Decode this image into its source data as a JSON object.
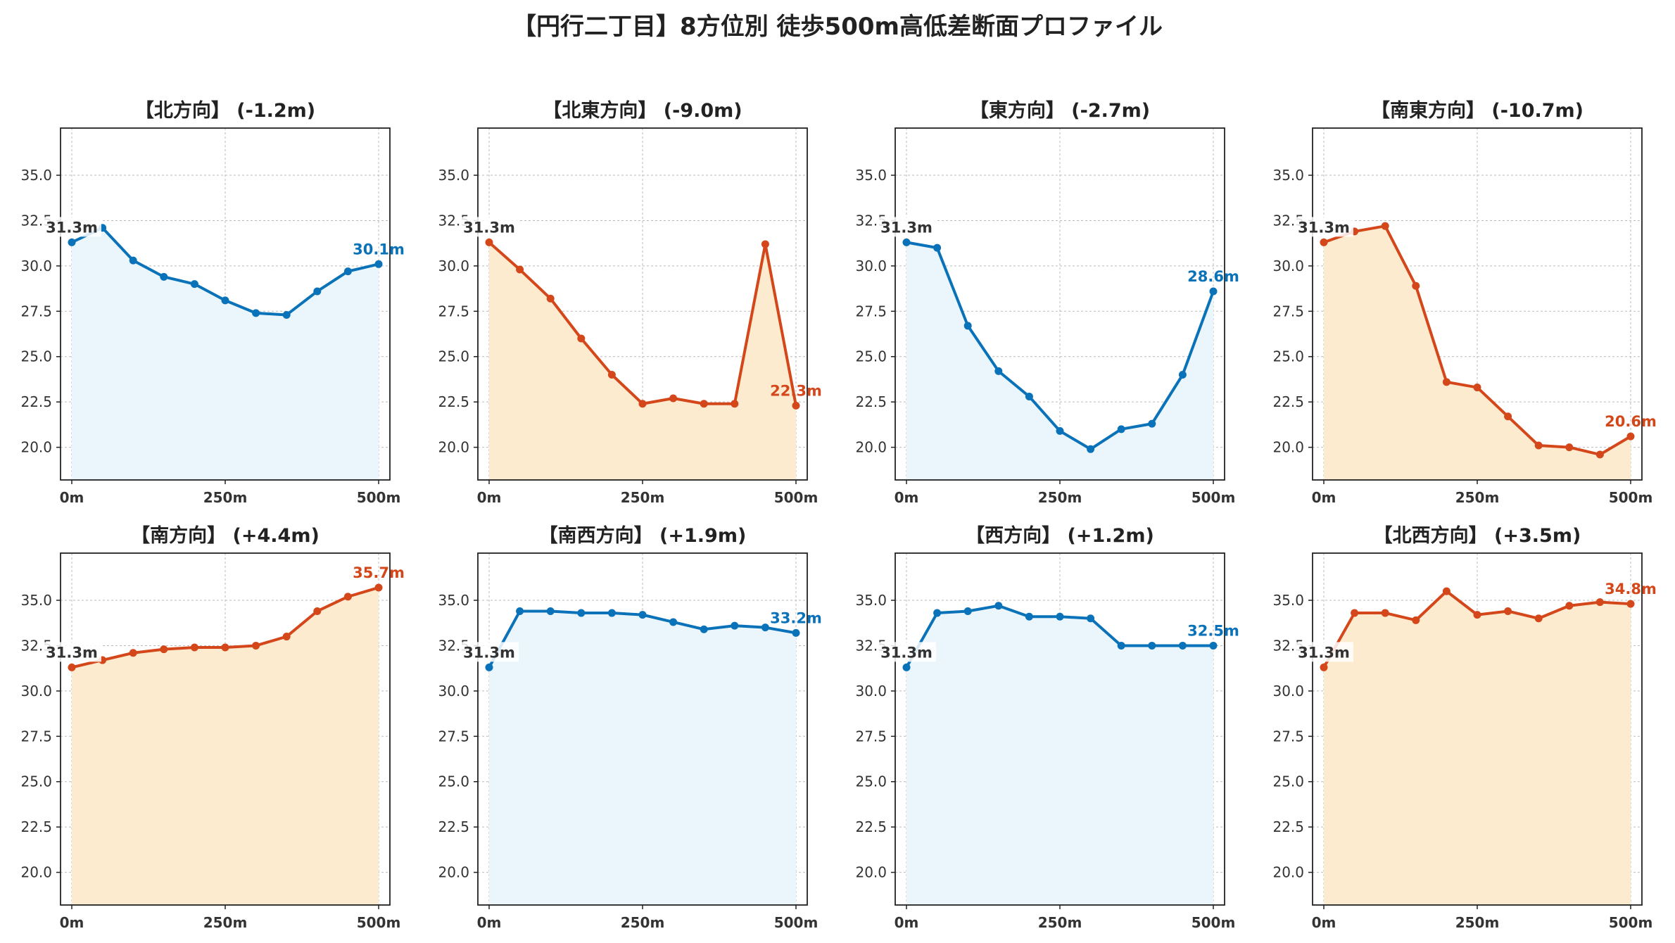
{
  "title": "【円行二丁目】8方位別 徒歩500m高低差断面プロファイル",
  "colors": {
    "down": "#d4471a",
    "up": "#0a72b8",
    "down_fill": "#fdebd0",
    "up_fill": "#eaf6fb",
    "grid": "#bbbbbb",
    "start_label": "#333333"
  },
  "chart_data": [
    {
      "type": "area",
      "title": "【北方向】 (-1.2m)",
      "color": "up",
      "x": [
        0,
        50,
        100,
        150,
        200,
        250,
        300,
        350,
        400,
        450,
        500
      ],
      "y": [
        31.3,
        32.1,
        30.3,
        29.4,
        29.0,
        28.1,
        27.4,
        27.3,
        28.6,
        29.7,
        30.1
      ],
      "start_label": "31.3m",
      "end_label": "30.1m",
      "xticks": [
        "0m",
        "250m",
        "500m"
      ],
      "yticks": [
        "20.0",
        "22.5",
        "25.0",
        "27.5",
        "30.0",
        "32.5",
        "35.0"
      ],
      "xlim": [
        0,
        500
      ],
      "ylim": [
        18.2,
        37.6
      ],
      "grid": true
    },
    {
      "type": "area",
      "title": "【北東方向】 (-9.0m)",
      "color": "down",
      "x": [
        0,
        50,
        100,
        150,
        200,
        250,
        300,
        350,
        400,
        450,
        500
      ],
      "y": [
        31.3,
        29.8,
        28.2,
        26.0,
        24.0,
        22.4,
        22.7,
        22.4,
        22.4,
        31.2,
        22.3
      ],
      "start_label": "31.3m",
      "end_label": "22.3m",
      "xticks": [
        "0m",
        "250m",
        "500m"
      ],
      "yticks": [
        "20.0",
        "22.5",
        "25.0",
        "27.5",
        "30.0",
        "32.5",
        "35.0"
      ],
      "xlim": [
        0,
        500
      ],
      "ylim": [
        18.2,
        37.6
      ],
      "grid": true
    },
    {
      "type": "area",
      "title": "【東方向】 (-2.7m)",
      "color": "up",
      "x": [
        0,
        50,
        100,
        150,
        200,
        250,
        300,
        350,
        400,
        450,
        500
      ],
      "y": [
        31.3,
        31.0,
        26.7,
        24.2,
        22.8,
        20.9,
        19.9,
        21.0,
        21.3,
        24.0,
        28.6
      ],
      "start_label": "31.3m",
      "end_label": "28.6m",
      "xticks": [
        "0m",
        "250m",
        "500m"
      ],
      "yticks": [
        "20.0",
        "22.5",
        "25.0",
        "27.5",
        "30.0",
        "32.5",
        "35.0"
      ],
      "xlim": [
        0,
        500
      ],
      "ylim": [
        18.2,
        37.6
      ],
      "grid": true
    },
    {
      "type": "area",
      "title": "【南東方向】 (-10.7m)",
      "color": "down",
      "x": [
        0,
        50,
        100,
        150,
        200,
        250,
        300,
        350,
        400,
        450,
        500
      ],
      "y": [
        31.3,
        31.9,
        32.2,
        28.9,
        23.6,
        23.3,
        21.7,
        20.1,
        20.0,
        19.6,
        20.6
      ],
      "start_label": "31.3m",
      "end_label": "20.6m",
      "xticks": [
        "0m",
        "250m",
        "500m"
      ],
      "yticks": [
        "20.0",
        "22.5",
        "25.0",
        "27.5",
        "30.0",
        "32.5",
        "35.0"
      ],
      "xlim": [
        0,
        500
      ],
      "ylim": [
        18.2,
        37.6
      ],
      "grid": true
    },
    {
      "type": "area",
      "title": "【南方向】 (+4.4m)",
      "color": "down",
      "x": [
        0,
        50,
        100,
        150,
        200,
        250,
        300,
        350,
        400,
        450,
        500
      ],
      "y": [
        31.3,
        31.7,
        32.1,
        32.3,
        32.4,
        32.4,
        32.5,
        33.0,
        34.4,
        35.2,
        35.7
      ],
      "start_label": "31.3m",
      "end_label": "35.7m",
      "xticks": [
        "0m",
        "250m",
        "500m"
      ],
      "yticks": [
        "20.0",
        "22.5",
        "25.0",
        "27.5",
        "30.0",
        "32.5",
        "35.0"
      ],
      "xlim": [
        0,
        500
      ],
      "ylim": [
        18.2,
        37.6
      ],
      "grid": true
    },
    {
      "type": "area",
      "title": "【南西方向】 (+1.9m)",
      "color": "up",
      "x": [
        0,
        50,
        100,
        150,
        200,
        250,
        300,
        350,
        400,
        450,
        500
      ],
      "y": [
        31.3,
        34.4,
        34.4,
        34.3,
        34.3,
        34.2,
        33.8,
        33.4,
        33.6,
        33.5,
        33.2
      ],
      "start_label": "31.3m",
      "end_label": "33.2m",
      "xticks": [
        "0m",
        "250m",
        "500m"
      ],
      "yticks": [
        "20.0",
        "22.5",
        "25.0",
        "27.5",
        "30.0",
        "32.5",
        "35.0"
      ],
      "xlim": [
        0,
        500
      ],
      "ylim": [
        18.2,
        37.6
      ],
      "grid": true
    },
    {
      "type": "area",
      "title": "【西方向】 (+1.2m)",
      "color": "up",
      "x": [
        0,
        50,
        100,
        150,
        200,
        250,
        300,
        350,
        400,
        450,
        500
      ],
      "y": [
        31.3,
        34.3,
        34.4,
        34.7,
        34.1,
        34.1,
        34.0,
        32.5,
        32.5,
        32.5,
        32.5
      ],
      "start_label": "31.3m",
      "end_label": "32.5m",
      "xticks": [
        "0m",
        "250m",
        "500m"
      ],
      "yticks": [
        "20.0",
        "22.5",
        "25.0",
        "27.5",
        "30.0",
        "32.5",
        "35.0"
      ],
      "xlim": [
        0,
        500
      ],
      "ylim": [
        18.2,
        37.6
      ],
      "grid": true
    },
    {
      "type": "area",
      "title": "【北西方向】 (+3.5m)",
      "color": "down",
      "x": [
        0,
        50,
        100,
        150,
        200,
        250,
        300,
        350,
        400,
        450,
        500
      ],
      "y": [
        31.3,
        34.3,
        34.3,
        33.9,
        35.5,
        34.2,
        34.4,
        34.0,
        34.7,
        34.9,
        34.8
      ],
      "start_label": "31.3m",
      "end_label": "34.8m",
      "xticks": [
        "0m",
        "250m",
        "500m"
      ],
      "yticks": [
        "20.0",
        "22.5",
        "25.0",
        "27.5",
        "30.0",
        "32.5",
        "35.0"
      ],
      "xlim": [
        0,
        500
      ],
      "ylim": [
        18.2,
        37.6
      ],
      "grid": true
    }
  ]
}
